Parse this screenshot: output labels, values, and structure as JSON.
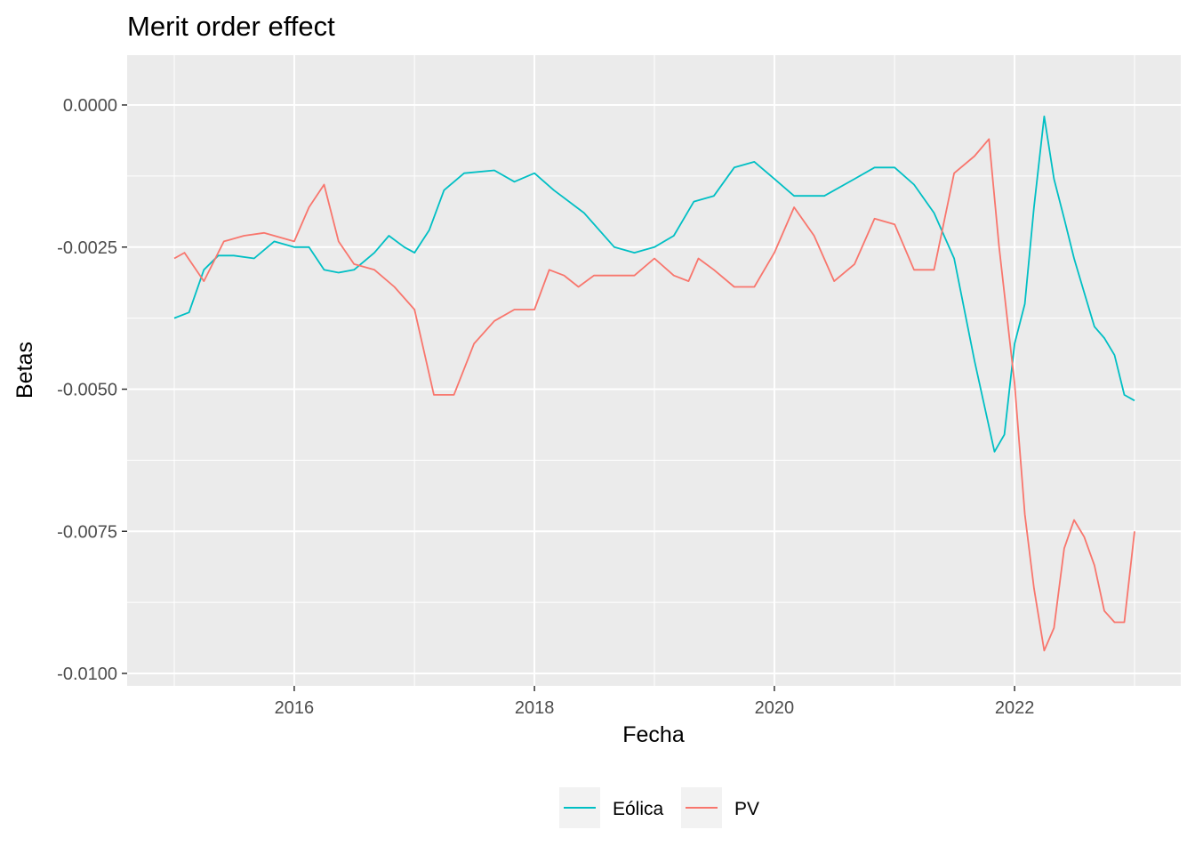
{
  "chart_data": {
    "type": "line",
    "title": "Merit order effect",
    "xlabel": "Fecha",
    "ylabel": "Betas",
    "xlim": [
      "2015-01-01",
      "2023-01-01"
    ],
    "ylim": [
      -0.01,
      0.0
    ],
    "x_ticks": [
      "2016",
      "2018",
      "2020",
      "2022"
    ],
    "y_ticks": [
      "0.0000",
      "-0.0025",
      "-0.0050",
      "-0.0075",
      "-0.0100"
    ],
    "grid": true,
    "legend_position": "bottom",
    "series": [
      {
        "name": "Eólica",
        "color": "#00BFC4",
        "points": [
          [
            "2015-01-01",
            -0.00375
          ],
          [
            "2015-02-15",
            -0.00365
          ],
          [
            "2015-04-01",
            -0.0029
          ],
          [
            "2015-05-15",
            -0.00265
          ],
          [
            "2015-07-01",
            -0.00265
          ],
          [
            "2015-09-01",
            -0.0027
          ],
          [
            "2015-11-01",
            -0.0024
          ],
          [
            "2016-01-01",
            -0.0025
          ],
          [
            "2016-02-15",
            -0.0025
          ],
          [
            "2016-04-01",
            -0.0029
          ],
          [
            "2016-05-15",
            -0.00295
          ],
          [
            "2016-07-01",
            -0.0029
          ],
          [
            "2016-09-01",
            -0.0026
          ],
          [
            "2016-10-15",
            -0.0023
          ],
          [
            "2016-12-01",
            -0.0025
          ],
          [
            "2017-01-01",
            -0.0026
          ],
          [
            "2017-02-15",
            -0.0022
          ],
          [
            "2017-04-01",
            -0.0015
          ],
          [
            "2017-06-01",
            -0.0012
          ],
          [
            "2017-09-01",
            -0.00115
          ],
          [
            "2017-11-01",
            -0.00135
          ],
          [
            "2018-01-01",
            -0.0012
          ],
          [
            "2018-03-01",
            -0.0015
          ],
          [
            "2018-06-01",
            -0.0019
          ],
          [
            "2018-09-01",
            -0.0025
          ],
          [
            "2018-11-01",
            -0.0026
          ],
          [
            "2019-01-01",
            -0.0025
          ],
          [
            "2019-03-01",
            -0.0023
          ],
          [
            "2019-05-01",
            -0.0017
          ],
          [
            "2019-07-01",
            -0.0016
          ],
          [
            "2019-09-01",
            -0.0011
          ],
          [
            "2019-11-01",
            -0.001
          ],
          [
            "2020-01-01",
            -0.0013
          ],
          [
            "2020-03-01",
            -0.0016
          ],
          [
            "2020-06-01",
            -0.0016
          ],
          [
            "2020-09-01",
            -0.0013
          ],
          [
            "2020-11-01",
            -0.0011
          ],
          [
            "2021-01-01",
            -0.0011
          ],
          [
            "2021-03-01",
            -0.0014
          ],
          [
            "2021-05-01",
            -0.0019
          ],
          [
            "2021-07-01",
            -0.0027
          ],
          [
            "2021-09-01",
            -0.0045
          ],
          [
            "2021-11-01",
            -0.0061
          ],
          [
            "2021-12-01",
            -0.0058
          ],
          [
            "2022-01-01",
            -0.0042
          ],
          [
            "2022-02-01",
            -0.0035
          ],
          [
            "2022-03-01",
            -0.0018
          ],
          [
            "2022-04-01",
            -0.0002
          ],
          [
            "2022-05-01",
            -0.0013
          ],
          [
            "2022-06-01",
            -0.002
          ],
          [
            "2022-07-01",
            -0.0027
          ],
          [
            "2022-08-01",
            -0.0033
          ],
          [
            "2022-09-01",
            -0.0039
          ],
          [
            "2022-10-01",
            -0.0041
          ],
          [
            "2022-11-01",
            -0.0044
          ],
          [
            "2022-12-01",
            -0.0051
          ],
          [
            "2023-01-01",
            -0.0052
          ]
        ]
      },
      {
        "name": "PV",
        "color": "#F8766D",
        "points": [
          [
            "2015-01-01",
            -0.0027
          ],
          [
            "2015-02-01",
            -0.0026
          ],
          [
            "2015-04-01",
            -0.0031
          ],
          [
            "2015-06-01",
            -0.0024
          ],
          [
            "2015-08-01",
            -0.0023
          ],
          [
            "2015-10-01",
            -0.00225
          ],
          [
            "2016-01-01",
            -0.0024
          ],
          [
            "2016-02-15",
            -0.0018
          ],
          [
            "2016-04-01",
            -0.0014
          ],
          [
            "2016-05-15",
            -0.0024
          ],
          [
            "2016-07-01",
            -0.0028
          ],
          [
            "2016-09-01",
            -0.0029
          ],
          [
            "2016-11-01",
            -0.0032
          ],
          [
            "2017-01-01",
            -0.0036
          ],
          [
            "2017-03-01",
            -0.0051
          ],
          [
            "2017-05-01",
            -0.0051
          ],
          [
            "2017-07-01",
            -0.0042
          ],
          [
            "2017-09-01",
            -0.0038
          ],
          [
            "2017-11-01",
            -0.0036
          ],
          [
            "2018-01-01",
            -0.0036
          ],
          [
            "2018-02-15",
            -0.0029
          ],
          [
            "2018-04-01",
            -0.003
          ],
          [
            "2018-05-15",
            -0.0032
          ],
          [
            "2018-07-01",
            -0.003
          ],
          [
            "2018-09-01",
            -0.003
          ],
          [
            "2018-11-01",
            -0.003
          ],
          [
            "2019-01-01",
            -0.0027
          ],
          [
            "2019-03-01",
            -0.003
          ],
          [
            "2019-04-15",
            -0.0031
          ],
          [
            "2019-05-15",
            -0.0027
          ],
          [
            "2019-07-01",
            -0.0029
          ],
          [
            "2019-09-01",
            -0.0032
          ],
          [
            "2019-11-01",
            -0.0032
          ],
          [
            "2020-01-01",
            -0.0026
          ],
          [
            "2020-03-01",
            -0.0018
          ],
          [
            "2020-05-01",
            -0.0023
          ],
          [
            "2020-07-01",
            -0.0031
          ],
          [
            "2020-09-01",
            -0.0028
          ],
          [
            "2020-11-01",
            -0.002
          ],
          [
            "2021-01-01",
            -0.0021
          ],
          [
            "2021-03-01",
            -0.0029
          ],
          [
            "2021-05-01",
            -0.0029
          ],
          [
            "2021-07-01",
            -0.0012
          ],
          [
            "2021-09-01",
            -0.0009
          ],
          [
            "2021-10-15",
            -0.0006
          ],
          [
            "2021-11-15",
            -0.0025
          ],
          [
            "2022-01-01",
            -0.0049
          ],
          [
            "2022-02-01",
            -0.0072
          ],
          [
            "2022-03-01",
            -0.0085
          ],
          [
            "2022-04-01",
            -0.0096
          ],
          [
            "2022-05-01",
            -0.0092
          ],
          [
            "2022-06-01",
            -0.0078
          ],
          [
            "2022-07-01",
            -0.0073
          ],
          [
            "2022-08-01",
            -0.0076
          ],
          [
            "2022-09-01",
            -0.0081
          ],
          [
            "2022-10-01",
            -0.0089
          ],
          [
            "2022-11-01",
            -0.0091
          ],
          [
            "2022-12-01",
            -0.0091
          ],
          [
            "2023-01-01",
            -0.0075
          ]
        ]
      }
    ]
  }
}
